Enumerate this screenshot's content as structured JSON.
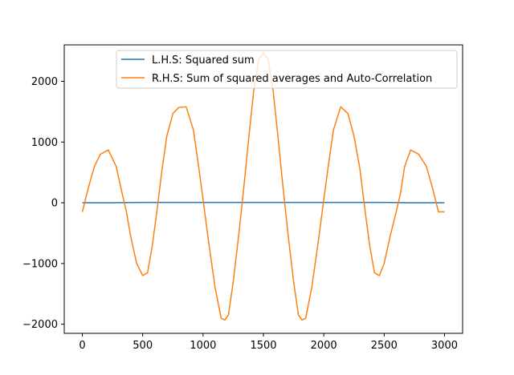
{
  "chart_data": {
    "type": "line",
    "title": "",
    "xlabel": "",
    "ylabel": "",
    "xlim": [
      -150,
      3150
    ],
    "ylim": [
      -2150,
      2600
    ],
    "x_ticks": [
      0,
      500,
      1000,
      1500,
      2000,
      2500,
      3000
    ],
    "x_tick_labels": [
      "0",
      "500",
      "1000",
      "1500",
      "2000",
      "2500",
      "3000"
    ],
    "y_ticks": [
      -2000,
      -1000,
      0,
      1000,
      2000
    ],
    "y_tick_labels": [
      "−2000",
      "−1000",
      "0",
      "1000",
      "2000"
    ],
    "grid": false,
    "legend_position": "upper-center",
    "series": [
      {
        "name": "L.H.S: Squared sum",
        "color": "#1f77b4",
        "x": [
          0,
          250,
          500,
          750,
          1000,
          1250,
          1500,
          1750,
          2000,
          2250,
          2500,
          2750,
          3000
        ],
        "y": [
          0,
          0,
          5,
          5,
          5,
          5,
          5,
          5,
          5,
          5,
          5,
          0,
          0
        ]
      },
      {
        "name": "R.H.S: Sum of squared averages and Auto-Correlation",
        "color": "#ff7f0e",
        "x": [
          0,
          50,
          100,
          150,
          215,
          280,
          330,
          365,
          400,
          450,
          500,
          540,
          580,
          620,
          660,
          700,
          750,
          800,
          860,
          920,
          970,
          1010,
          1050,
          1100,
          1150,
          1180,
          1210,
          1250,
          1300,
          1340,
          1380,
          1420,
          1460,
          1500,
          1540,
          1580,
          1620,
          1660,
          1700,
          1750,
          1790,
          1820,
          1850,
          1900,
          1950,
          1990,
          2030,
          2080,
          2140,
          2200,
          2250,
          2300,
          2340,
          2380,
          2420,
          2460,
          2500,
          2550,
          2600,
          2635,
          2670,
          2720,
          2785,
          2850,
          2900,
          2950,
          3000
        ],
        "y": [
          -150,
          250,
          600,
          800,
          870,
          600,
          150,
          -150,
          -550,
          -1000,
          -1200,
          -1150,
          -700,
          -100,
          550,
          1100,
          1470,
          1570,
          1580,
          1200,
          500,
          -100,
          -700,
          -1400,
          -1900,
          -1930,
          -1850,
          -1300,
          -450,
          300,
          1100,
          1850,
          2350,
          2480,
          2350,
          1850,
          1100,
          300,
          -450,
          -1300,
          -1850,
          -1930,
          -1900,
          -1400,
          -700,
          -100,
          500,
          1200,
          1580,
          1470,
          1100,
          550,
          -100,
          -700,
          -1150,
          -1200,
          -1000,
          -550,
          -150,
          150,
          600,
          870,
          800,
          600,
          250,
          -150,
          -150
        ]
      }
    ]
  }
}
